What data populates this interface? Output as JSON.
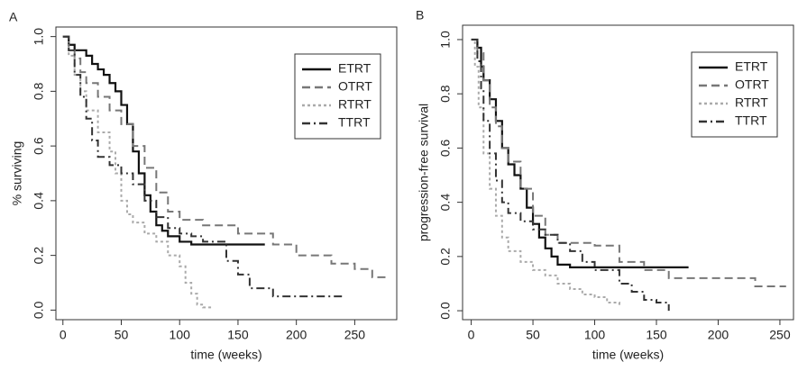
{
  "chart_data": [
    {
      "type": "step",
      "panel": "A",
      "ylabel": "% surviving",
      "xlabel": "time (weeks)",
      "xlim": [
        -6,
        286
      ],
      "ylim": [
        -0.035,
        1.035
      ],
      "xticks": [
        0,
        50,
        100,
        150,
        200,
        250
      ],
      "yticks": [
        {
          "value": 0,
          "label": "0.0"
        },
        0.2,
        0.4,
        0.6,
        0.8,
        {
          "value": 1,
          "label": "1.0"
        }
      ],
      "legend": "upper right",
      "series": [
        {
          "name": "ETRT",
          "color": "#111111",
          "style": "solid",
          "x": [
            0,
            5,
            10,
            20,
            25,
            30,
            35,
            40,
            45,
            50,
            55,
            60,
            65,
            70,
            75,
            80,
            85,
            90,
            100,
            110,
            120,
            173
          ],
          "values": [
            1,
            0.97,
            0.95,
            0.93,
            0.9,
            0.88,
            0.86,
            0.83,
            0.8,
            0.75,
            0.68,
            0.58,
            0.5,
            0.42,
            0.36,
            0.31,
            0.29,
            0.27,
            0.25,
            0.24,
            0.24,
            0.24
          ]
        },
        {
          "name": "OTRT",
          "color": "#777777",
          "style": "dashed",
          "x": [
            0,
            5,
            10,
            15,
            20,
            30,
            40,
            50,
            60,
            70,
            80,
            90,
            100,
            120,
            150,
            180,
            200,
            230,
            250,
            265,
            280
          ],
          "values": [
            1,
            0.95,
            0.92,
            0.87,
            0.83,
            0.78,
            0.73,
            0.68,
            0.6,
            0.52,
            0.43,
            0.36,
            0.33,
            0.31,
            0.28,
            0.24,
            0.2,
            0.17,
            0.15,
            0.12,
            0.12
          ]
        },
        {
          "name": "RTRT",
          "color": "#aaaaaa",
          "style": "dotted",
          "x": [
            0,
            5,
            10,
            15,
            20,
            30,
            40,
            45,
            50,
            55,
            60,
            70,
            80,
            90,
            100,
            105,
            110,
            115,
            120,
            128
          ],
          "values": [
            1,
            0.93,
            0.86,
            0.8,
            0.73,
            0.65,
            0.58,
            0.5,
            0.4,
            0.35,
            0.32,
            0.28,
            0.25,
            0.2,
            0.16,
            0.1,
            0.06,
            0.02,
            0.01,
            0.01
          ]
        },
        {
          "name": "TTRT",
          "color": "#333333",
          "style": "dashdot",
          "x": [
            0,
            5,
            10,
            15,
            20,
            25,
            30,
            40,
            50,
            60,
            70,
            80,
            90,
            100,
            110,
            120,
            140,
            150,
            160,
            180,
            210,
            240
          ],
          "values": [
            1,
            0.95,
            0.86,
            0.78,
            0.7,
            0.62,
            0.56,
            0.53,
            0.5,
            0.46,
            0.4,
            0.34,
            0.3,
            0.28,
            0.27,
            0.25,
            0.18,
            0.13,
            0.08,
            0.05,
            0.05,
            0.05
          ]
        }
      ]
    },
    {
      "type": "step",
      "panel": "B",
      "ylabel": "progression-free survival",
      "xlabel": "time (weeks)",
      "xlim": [
        -7,
        261
      ],
      "ylim": [
        -0.033,
        1.053
      ],
      "xticks": [
        0,
        50,
        100,
        150,
        200,
        250
      ],
      "yticks": [
        {
          "value": 0,
          "label": "0.0"
        },
        0.2,
        0.4,
        0.6,
        0.8,
        {
          "value": 1,
          "label": "1.0"
        }
      ],
      "legend": "upper right",
      "series": [
        {
          "name": "ETRT",
          "color": "#111111",
          "style": "solid",
          "x": [
            0,
            5,
            8,
            10,
            15,
            20,
            25,
            30,
            35,
            40,
            45,
            50,
            55,
            60,
            65,
            70,
            80,
            100,
            176
          ],
          "values": [
            1,
            0.97,
            0.9,
            0.85,
            0.78,
            0.7,
            0.6,
            0.54,
            0.5,
            0.45,
            0.38,
            0.32,
            0.27,
            0.23,
            0.2,
            0.17,
            0.16,
            0.16,
            0.16
          ]
        },
        {
          "name": "OTRT",
          "color": "#777777",
          "style": "dashed",
          "x": [
            0,
            5,
            10,
            15,
            20,
            25,
            30,
            40,
            50,
            60,
            70,
            80,
            100,
            120,
            140,
            160,
            200,
            230,
            255
          ],
          "values": [
            1,
            0.95,
            0.85,
            0.75,
            0.68,
            0.6,
            0.55,
            0.45,
            0.35,
            0.28,
            0.25,
            0.25,
            0.24,
            0.18,
            0.15,
            0.12,
            0.12,
            0.09,
            0.09
          ]
        },
        {
          "name": "RTRT",
          "color": "#aaaaaa",
          "style": "dotted",
          "x": [
            0,
            3,
            6,
            10,
            15,
            20,
            25,
            30,
            40,
            50,
            60,
            70,
            80,
            90,
            100,
            110,
            120
          ],
          "values": [
            1,
            0.9,
            0.75,
            0.58,
            0.45,
            0.35,
            0.27,
            0.22,
            0.18,
            0.15,
            0.13,
            0.1,
            0.08,
            0.06,
            0.05,
            0.03,
            0.02
          ]
        },
        {
          "name": "TTRT",
          "color": "#333333",
          "style": "dashdot",
          "x": [
            0,
            5,
            8,
            10,
            15,
            20,
            25,
            30,
            40,
            50,
            60,
            70,
            80,
            90,
            100,
            120,
            130,
            140,
            150,
            160
          ],
          "values": [
            1,
            0.92,
            0.82,
            0.7,
            0.58,
            0.48,
            0.4,
            0.36,
            0.33,
            0.3,
            0.28,
            0.25,
            0.22,
            0.18,
            0.15,
            0.1,
            0.07,
            0.04,
            0.03,
            0.0
          ]
        }
      ]
    }
  ]
}
